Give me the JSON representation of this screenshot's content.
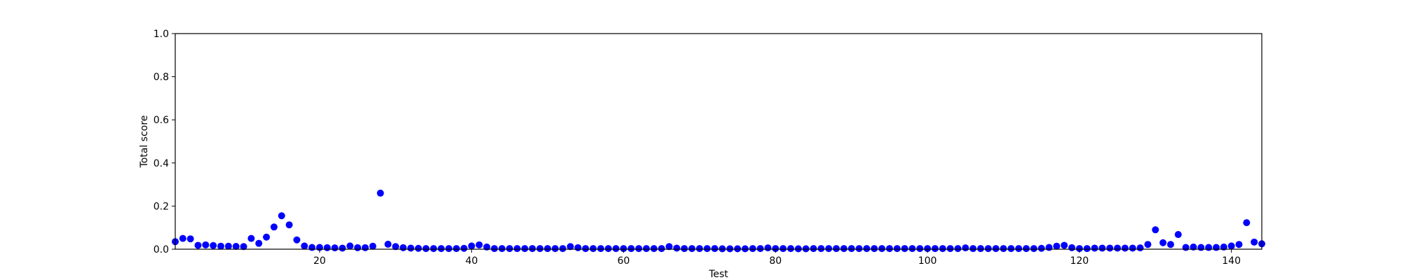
{
  "chart_data": {
    "type": "scatter",
    "title": "",
    "xlabel": "Test",
    "ylabel": "Total score",
    "xlim": [
      1,
      144
    ],
    "ylim": [
      0,
      1.0
    ],
    "xticks": [
      20,
      40,
      60,
      80,
      100,
      120,
      140
    ],
    "xtick_labels": [
      "20",
      "40",
      "60",
      "80",
      "100",
      "120",
      "140"
    ],
    "yticks": [
      0,
      0.2,
      0.4,
      0.6,
      0.8,
      1.0
    ],
    "ytick_labels": [
      "0.0",
      "0.2",
      "0.4",
      "0.6",
      "0.8",
      "1.0"
    ],
    "grid": false,
    "marker_color": "#0000ff",
    "series": [
      {
        "name": "Total score",
        "x": [
          1,
          2,
          3,
          4,
          5,
          6,
          7,
          8,
          9,
          10,
          11,
          12,
          13,
          14,
          15,
          16,
          17,
          18,
          19,
          20,
          21,
          22,
          23,
          24,
          25,
          26,
          27,
          28,
          29,
          30,
          31,
          32,
          33,
          34,
          35,
          36,
          37,
          38,
          39,
          40,
          41,
          42,
          43,
          44,
          45,
          46,
          47,
          48,
          49,
          50,
          51,
          52,
          53,
          54,
          55,
          56,
          57,
          58,
          59,
          60,
          61,
          62,
          63,
          64,
          65,
          66,
          67,
          68,
          69,
          70,
          71,
          72,
          73,
          74,
          75,
          76,
          77,
          78,
          79,
          80,
          81,
          82,
          83,
          84,
          85,
          86,
          87,
          88,
          89,
          90,
          91,
          92,
          93,
          94,
          95,
          96,
          97,
          98,
          99,
          100,
          101,
          102,
          103,
          104,
          105,
          106,
          107,
          108,
          109,
          110,
          111,
          112,
          113,
          114,
          115,
          116,
          117,
          118,
          119,
          120,
          121,
          122,
          123,
          124,
          125,
          126,
          127,
          128,
          129,
          130,
          131,
          132,
          133,
          134,
          135,
          136,
          137,
          138,
          139,
          140,
          141,
          142,
          143,
          144
        ],
        "y": [
          0.035,
          0.05,
          0.048,
          0.018,
          0.02,
          0.017,
          0.014,
          0.014,
          0.013,
          0.012,
          0.05,
          0.027,
          0.056,
          0.103,
          0.155,
          0.113,
          0.043,
          0.015,
          0.008,
          0.008,
          0.007,
          0.006,
          0.005,
          0.015,
          0.007,
          0.007,
          0.014,
          0.26,
          0.023,
          0.012,
          0.007,
          0.005,
          0.004,
          0.003,
          0.003,
          0.003,
          0.003,
          0.003,
          0.004,
          0.015,
          0.02,
          0.01,
          0.003,
          0.003,
          0.003,
          0.003,
          0.003,
          0.003,
          0.003,
          0.003,
          0.003,
          0.003,
          0.012,
          0.007,
          0.003,
          0.003,
          0.003,
          0.003,
          0.003,
          0.003,
          0.003,
          0.003,
          0.003,
          0.003,
          0.003,
          0.012,
          0.005,
          0.003,
          0.003,
          0.003,
          0.003,
          0.003,
          0.002,
          0.002,
          0.002,
          0.002,
          0.003,
          0.003,
          0.006,
          0.003,
          0.003,
          0.003,
          0.002,
          0.002,
          0.003,
          0.003,
          0.003,
          0.003,
          0.003,
          0.003,
          0.003,
          0.003,
          0.003,
          0.003,
          0.003,
          0.003,
          0.003,
          0.003,
          0.003,
          0.003,
          0.003,
          0.003,
          0.003,
          0.003,
          0.006,
          0.003,
          0.003,
          0.003,
          0.003,
          0.003,
          0.003,
          0.003,
          0.003,
          0.003,
          0.004,
          0.008,
          0.014,
          0.018,
          0.007,
          0.003,
          0.003,
          0.005,
          0.005,
          0.005,
          0.005,
          0.005,
          0.005,
          0.006,
          0.022,
          0.09,
          0.03,
          0.022,
          0.068,
          0.008,
          0.01,
          0.008,
          0.008,
          0.008,
          0.01,
          0.015,
          0.022,
          0.123,
          0.033,
          0.025
        ]
      }
    ]
  }
}
